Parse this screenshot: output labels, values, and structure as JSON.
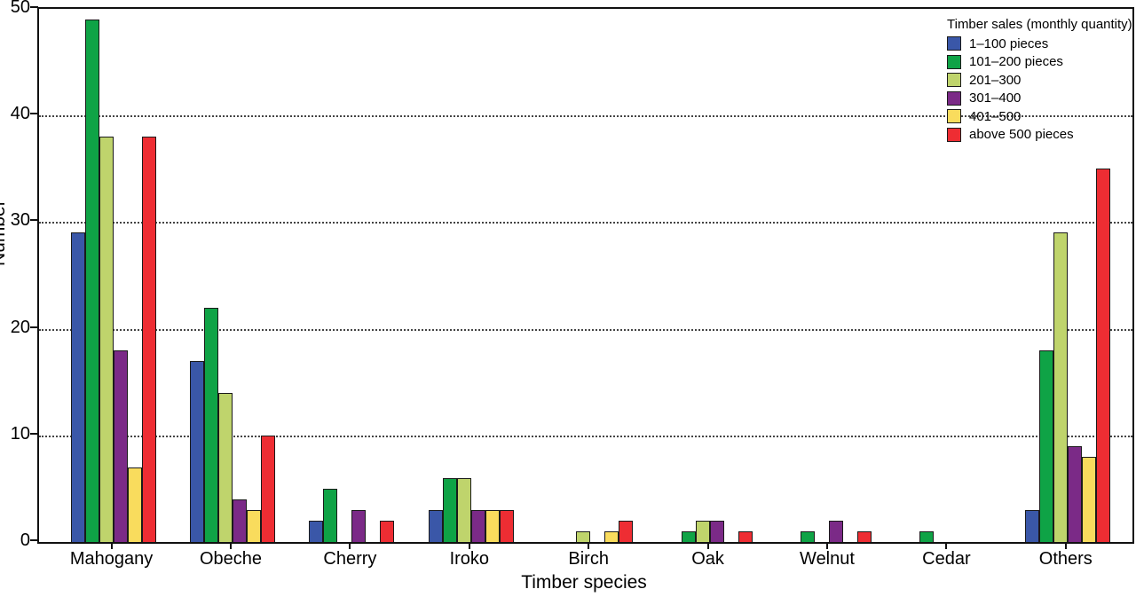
{
  "chart_data": {
    "type": "bar",
    "title": "",
    "xlabel": "Timber species",
    "ylabel": "Number",
    "ylim": [
      0,
      50
    ],
    "yticks": [
      0,
      10,
      20,
      30,
      40,
      50
    ],
    "grid": "horizontal dotted lines at 10, 20, 30, 40",
    "legend_position": "top-right inside plot",
    "legend_title": "Timber sales (monthly quantity)",
    "categories": [
      "Mahogany",
      "Obeche",
      "Cherry",
      "Iroko",
      "Birch",
      "Oak",
      "Welnut",
      "Cedar",
      "Others"
    ],
    "series": [
      {
        "name": "1–100 pieces",
        "color": "#3A57A8",
        "values": [
          29,
          17,
          2,
          3,
          0,
          0,
          0,
          0,
          3
        ]
      },
      {
        "name": "101–200 pieces",
        "color": "#0FA346",
        "values": [
          49,
          22,
          5,
          6,
          0,
          1,
          1,
          1,
          18
        ]
      },
      {
        "name": "201–300",
        "color": "#BFD46C",
        "values": [
          38,
          14,
          0,
          6,
          1,
          2,
          0,
          0,
          29
        ]
      },
      {
        "name": "301–400",
        "color": "#7B2A87",
        "values": [
          18,
          4,
          3,
          3,
          0,
          2,
          2,
          0,
          9
        ]
      },
      {
        "name": "401–500",
        "color": "#F9DC5D",
        "values": [
          7,
          3,
          0,
          3,
          1,
          0,
          0,
          0,
          8
        ]
      },
      {
        "name": "above 500 pieces",
        "color": "#EE2D33",
        "values": [
          38,
          10,
          2,
          3,
          2,
          1,
          1,
          0,
          35
        ]
      }
    ],
    "bar_border_color": "#1a1a1a",
    "axis_color": "#111111"
  }
}
